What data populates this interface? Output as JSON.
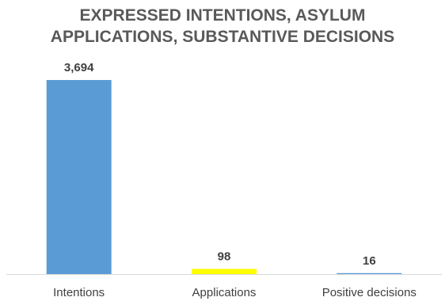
{
  "chart_data": {
    "type": "bar",
    "title": "EXPRESSED INTENTIONS, ASYLUM APPLICATIONS, SUBSTANTIVE DECISIONS",
    "title_lines": [
      "EXPRESSED INTENTIONS, ASYLUM",
      "APPLICATIONS, SUBSTANTIVE DECISIONS"
    ],
    "categories": [
      "Intentions",
      "Applications",
      "Positive decisions"
    ],
    "values": [
      3694,
      98,
      16
    ],
    "value_labels": [
      "3,694",
      "98",
      "16"
    ],
    "bar_colors": [
      "#5B9BD5",
      "#FFFF00",
      "#5B9BD5"
    ],
    "xlabel": "",
    "ylabel": "",
    "ylim": [
      0,
      3694
    ],
    "grid": false,
    "legend": "none"
  }
}
